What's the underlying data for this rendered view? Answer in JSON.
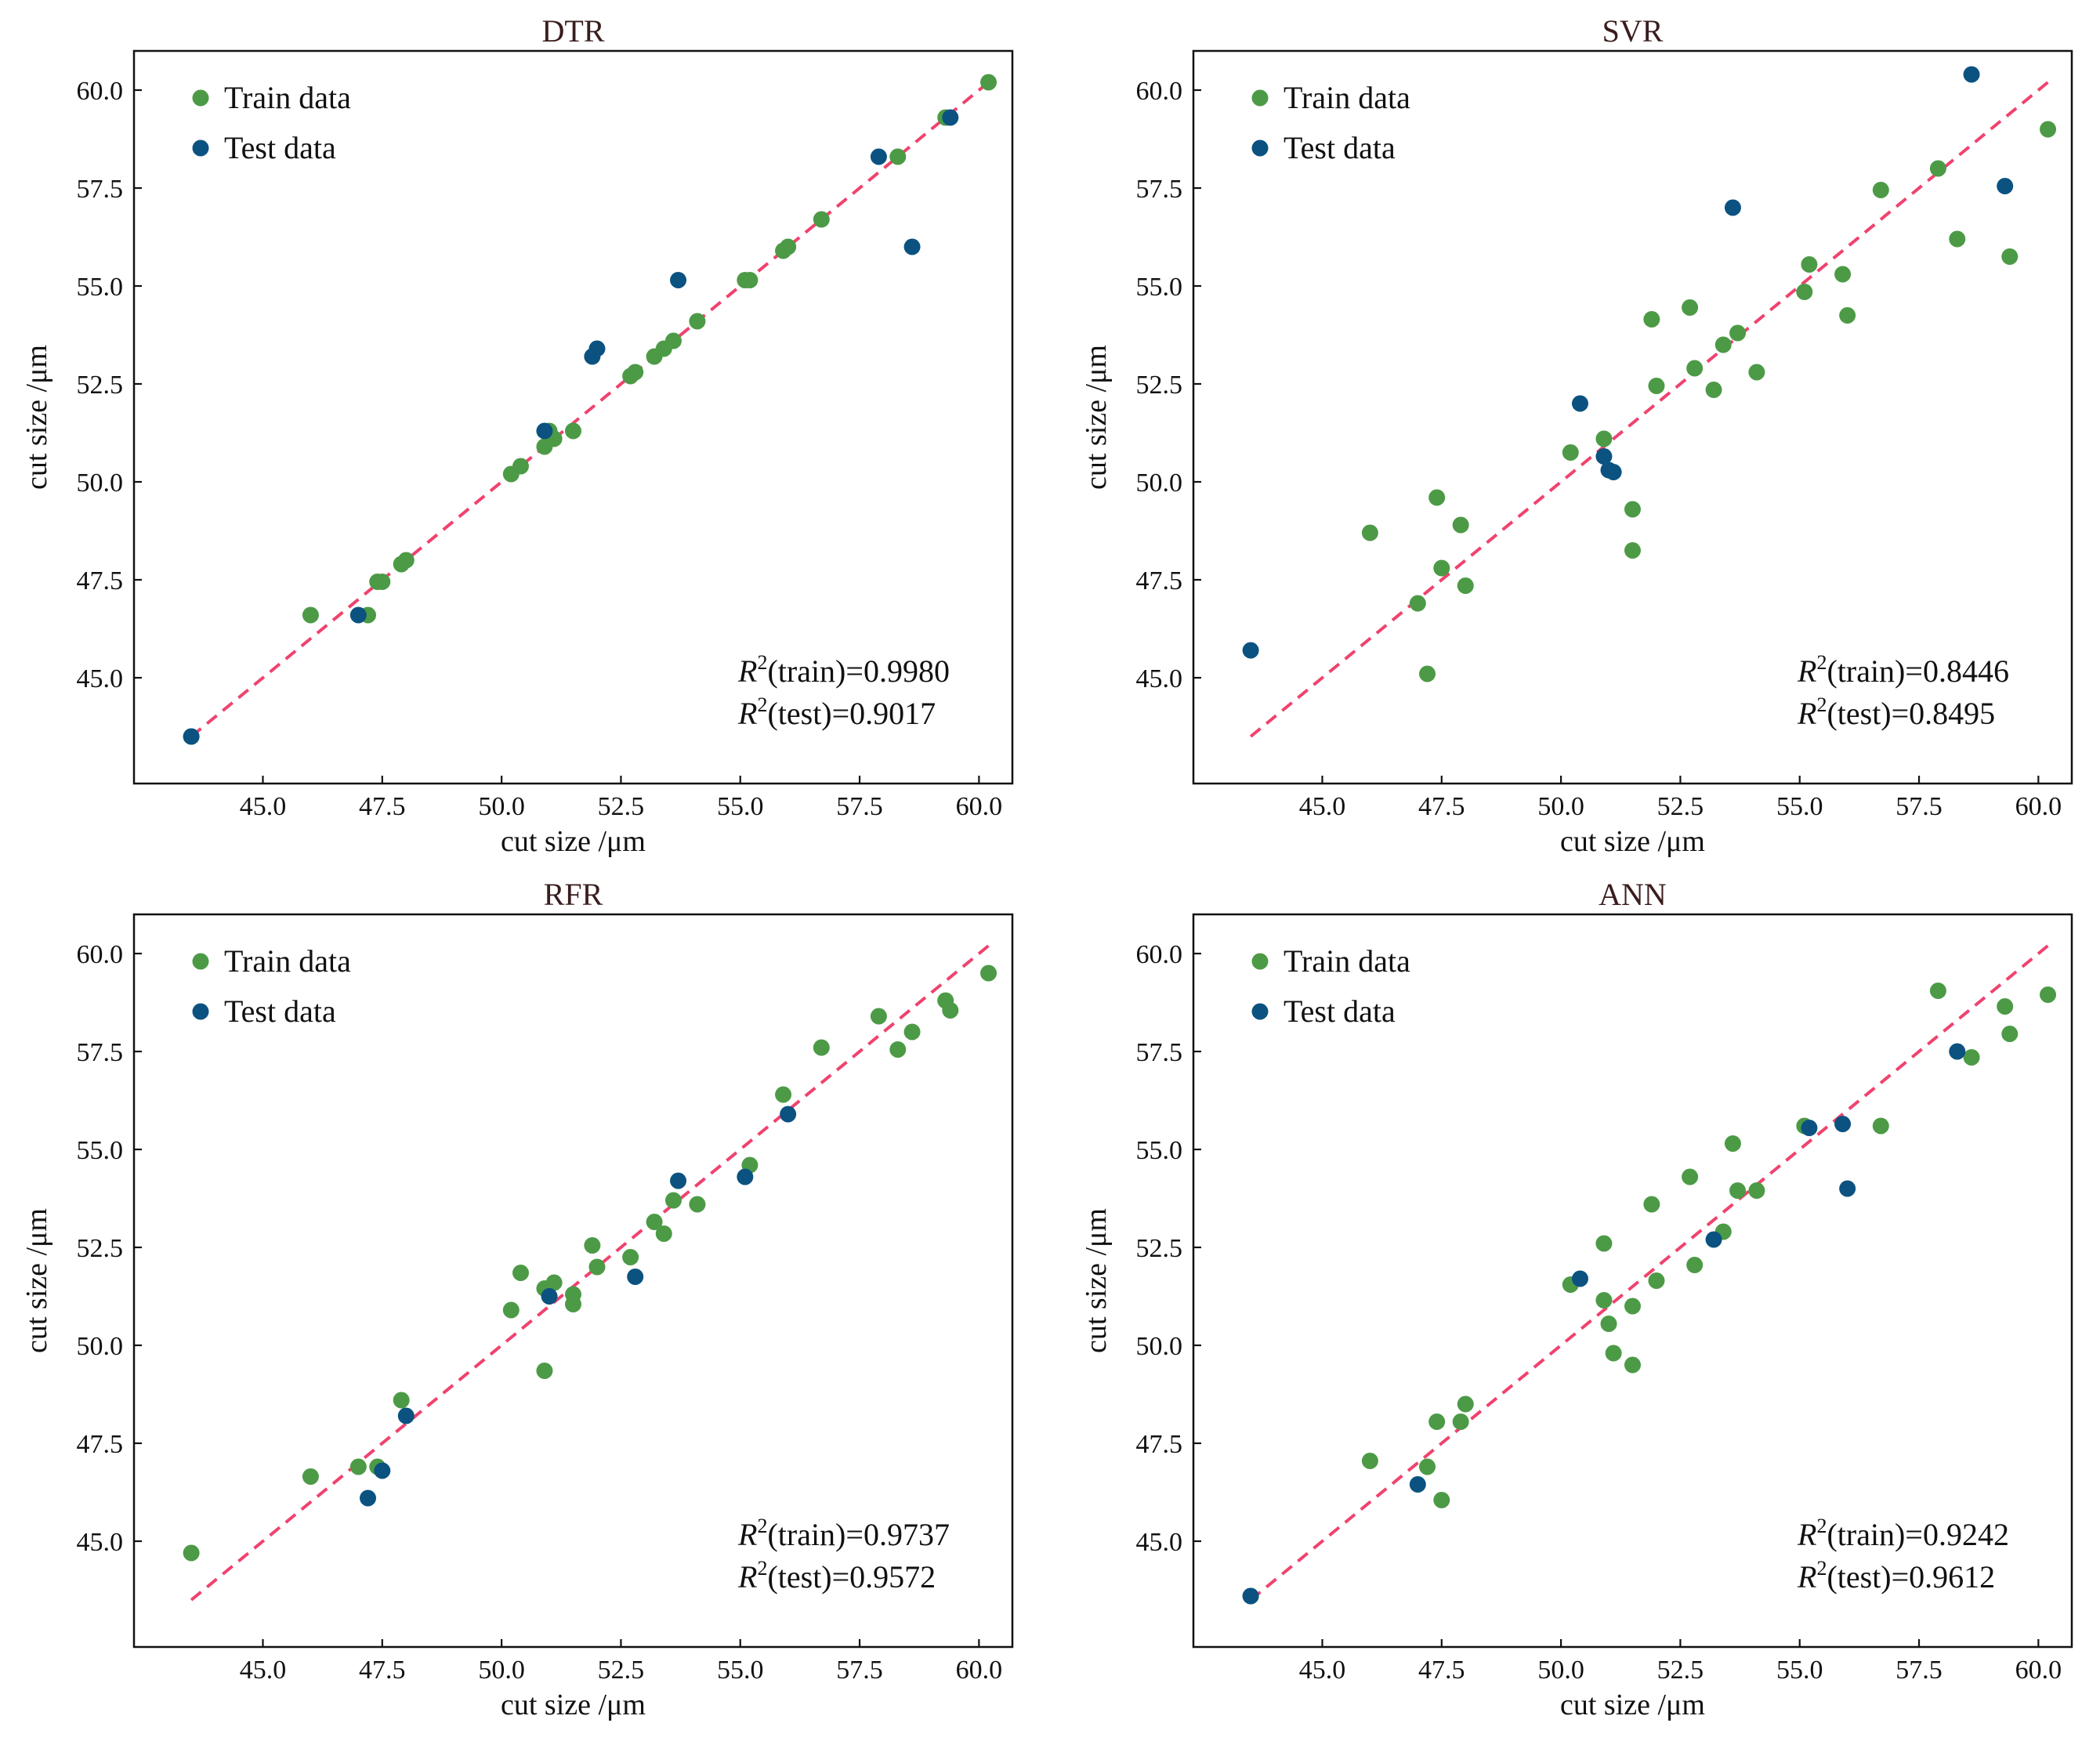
{
  "colors": {
    "train": "#4c9a46",
    "test": "#0b5281",
    "fit": "#f0426e",
    "title": "#3a1d1d"
  },
  "chart_data": [
    {
      "type": "scatter",
      "title": "DTR",
      "xlabel": "cut size /μm",
      "ylabel": "cut size /μm",
      "xlim": [
        42.3,
        60.7
      ],
      "ylim": [
        42.3,
        61.0
      ],
      "xticks": [
        "45.0",
        "47.5",
        "50.0",
        "52.5",
        "55.0",
        "57.5",
        "60.0"
      ],
      "yticks": [
        "45.0",
        "47.5",
        "50.0",
        "52.5",
        "55.0",
        "57.5",
        "60.0"
      ],
      "legend": [
        "Train data",
        "Test data"
      ],
      "legend_position": "top-left",
      "fit_line": [
        [
          43.5,
          43.5
        ],
        [
          60.2,
          60.2
        ]
      ],
      "metrics": {
        "r2_train_label": "(train)=0.9980",
        "r2_test_label": "(test)=0.9017"
      },
      "series": [
        {
          "name": "Train data",
          "points": [
            [
              43.5,
              43.5
            ],
            [
              46.0,
              46.6
            ],
            [
              47.2,
              46.6
            ],
            [
              47.4,
              47.45
            ],
            [
              47.5,
              47.45
            ],
            [
              47.9,
              47.9
            ],
            [
              48.0,
              48.0
            ],
            [
              50.2,
              50.2
            ],
            [
              50.4,
              50.4
            ],
            [
              50.9,
              50.9
            ],
            [
              51.1,
              51.1
            ],
            [
              51.0,
              51.3
            ],
            [
              51.5,
              51.3
            ],
            [
              52.7,
              52.7
            ],
            [
              52.8,
              52.8
            ],
            [
              53.2,
              53.2
            ],
            [
              53.4,
              53.4
            ],
            [
              53.6,
              53.6
            ],
            [
              54.1,
              54.1
            ],
            [
              55.1,
              55.15
            ],
            [
              55.2,
              55.15
            ],
            [
              55.9,
              55.9
            ],
            [
              56.0,
              56.0
            ],
            [
              56.7,
              56.7
            ],
            [
              58.3,
              58.3
            ],
            [
              59.3,
              59.3
            ],
            [
              60.2,
              60.2
            ]
          ]
        },
        {
          "name": "Test data",
          "points": [
            [
              43.5,
              43.5
            ],
            [
              47.0,
              46.6
            ],
            [
              50.9,
              51.3
            ],
            [
              51.9,
              53.2
            ],
            [
              52.0,
              53.4
            ],
            [
              53.7,
              55.15
            ],
            [
              57.9,
              58.3
            ],
            [
              58.6,
              56.0
            ],
            [
              59.4,
              59.3
            ]
          ]
        }
      ]
    },
    {
      "type": "scatter",
      "title": "SVR",
      "xlabel": "cut size /μm",
      "ylabel": "cut size /μm",
      "xlim": [
        42.3,
        60.7
      ],
      "ylim": [
        42.3,
        61.0
      ],
      "xticks": [
        "45.0",
        "47.5",
        "50.0",
        "52.5",
        "55.0",
        "57.5",
        "60.0"
      ],
      "yticks": [
        "45.0",
        "47.5",
        "50.0",
        "52.5",
        "55.0",
        "57.5",
        "60.0"
      ],
      "legend": [
        "Train data",
        "Test data"
      ],
      "legend_position": "top-left",
      "fit_line": [
        [
          43.5,
          43.5
        ],
        [
          60.2,
          60.2
        ]
      ],
      "metrics": {
        "r2_train_label": "(train)=0.8446",
        "r2_test_label": "(test)=0.8495"
      },
      "series": [
        {
          "name": "Train data",
          "points": [
            [
              46.0,
              48.7
            ],
            [
              47.0,
              46.9
            ],
            [
              47.2,
              45.1
            ],
            [
              47.4,
              49.6
            ],
            [
              47.5,
              47.8
            ],
            [
              47.9,
              48.9
            ],
            [
              48.0,
              47.35
            ],
            [
              50.2,
              50.75
            ],
            [
              50.9,
              51.1
            ],
            [
              51.5,
              49.3
            ],
            [
              51.5,
              48.25
            ],
            [
              51.9,
              54.15
            ],
            [
              52.0,
              52.45
            ],
            [
              52.7,
              54.45
            ],
            [
              52.8,
              52.9
            ],
            [
              53.2,
              52.35
            ],
            [
              53.4,
              53.5
            ],
            [
              53.7,
              53.8
            ],
            [
              54.1,
              52.8
            ],
            [
              55.1,
              54.85
            ],
            [
              55.2,
              55.55
            ],
            [
              55.9,
              55.3
            ],
            [
              56.0,
              54.25
            ],
            [
              56.7,
              57.45
            ],
            [
              57.9,
              58.0
            ],
            [
              58.3,
              56.2
            ],
            [
              59.4,
              55.75
            ],
            [
              60.2,
              59.0
            ]
          ]
        },
        {
          "name": "Test data",
          "points": [
            [
              43.5,
              45.7
            ],
            [
              50.4,
              52.0
            ],
            [
              50.9,
              50.65
            ],
            [
              51.0,
              50.3
            ],
            [
              51.1,
              50.25
            ],
            [
              53.6,
              57.0
            ],
            [
              58.6,
              60.4
            ],
            [
              59.3,
              57.55
            ]
          ]
        }
      ]
    },
    {
      "type": "scatter",
      "title": "RFR",
      "xlabel": "cut size /μm",
      "ylabel": "cut size /μm",
      "xlim": [
        42.3,
        60.7
      ],
      "ylim": [
        42.3,
        61.0
      ],
      "xticks": [
        "45.0",
        "47.5",
        "50.0",
        "52.5",
        "55.0",
        "57.5",
        "60.0"
      ],
      "yticks": [
        "45.0",
        "47.5",
        "50.0",
        "52.5",
        "55.0",
        "57.5",
        "60.0"
      ],
      "legend": [
        "Train data",
        "Test data"
      ],
      "legend_position": "top-left",
      "fit_line": [
        [
          43.5,
          43.5
        ],
        [
          60.2,
          60.2
        ]
      ],
      "metrics": {
        "r2_train_label": "(train)=0.9737",
        "r2_test_label": "(test)=0.9572"
      },
      "series": [
        {
          "name": "Train data",
          "points": [
            [
              43.5,
              44.7
            ],
            [
              46.0,
              46.65
            ],
            [
              47.0,
              46.9
            ],
            [
              47.4,
              46.9
            ],
            [
              47.9,
              48.6
            ],
            [
              50.2,
              50.9
            ],
            [
              50.4,
              51.85
            ],
            [
              50.9,
              51.45
            ],
            [
              50.9,
              49.35
            ],
            [
              51.1,
              51.6
            ],
            [
              51.5,
              51.3
            ],
            [
              51.5,
              51.05
            ],
            [
              51.9,
              52.55
            ],
            [
              52.0,
              52.0
            ],
            [
              52.7,
              52.25
            ],
            [
              53.2,
              53.15
            ],
            [
              53.4,
              52.85
            ],
            [
              53.6,
              53.7
            ],
            [
              54.1,
              53.6
            ],
            [
              55.2,
              54.6
            ],
            [
              55.9,
              56.4
            ],
            [
              56.7,
              57.6
            ],
            [
              57.9,
              58.4
            ],
            [
              58.3,
              57.55
            ],
            [
              58.6,
              58.0
            ],
            [
              59.3,
              58.8
            ],
            [
              59.4,
              58.55
            ],
            [
              60.2,
              59.5
            ]
          ]
        },
        {
          "name": "Test data",
          "points": [
            [
              47.2,
              46.1
            ],
            [
              47.5,
              46.8
            ],
            [
              48.0,
              48.2
            ],
            [
              51.0,
              51.25
            ],
            [
              52.8,
              51.75
            ],
            [
              53.7,
              54.2
            ],
            [
              55.1,
              54.3
            ],
            [
              56.0,
              55.9
            ]
          ]
        }
      ]
    },
    {
      "type": "scatter",
      "title": "ANN",
      "xlabel": "cut size /μm",
      "ylabel": "cut size /μm",
      "xlim": [
        42.3,
        60.7
      ],
      "ylim": [
        42.3,
        61.0
      ],
      "xticks": [
        "45.0",
        "47.5",
        "50.0",
        "52.5",
        "55.0",
        "57.5",
        "60.0"
      ],
      "yticks": [
        "45.0",
        "47.5",
        "50.0",
        "52.5",
        "55.0",
        "57.5",
        "60.0"
      ],
      "legend": [
        "Train data",
        "Test data"
      ],
      "legend_position": "top-left",
      "fit_line": [
        [
          43.5,
          43.5
        ],
        [
          60.2,
          60.2
        ]
      ],
      "metrics": {
        "r2_train_label": "(train)=0.9242",
        "r2_test_label": "(test)=0.9612"
      },
      "series": [
        {
          "name": "Train data",
          "points": [
            [
              43.5,
              43.6
            ],
            [
              46.0,
              47.05
            ],
            [
              47.2,
              46.9
            ],
            [
              47.4,
              48.05
            ],
            [
              47.5,
              46.05
            ],
            [
              47.9,
              48.05
            ],
            [
              48.0,
              48.5
            ],
            [
              50.2,
              51.55
            ],
            [
              50.9,
              52.6
            ],
            [
              50.9,
              51.15
            ],
            [
              51.0,
              50.55
            ],
            [
              51.1,
              49.8
            ],
            [
              51.5,
              51.0
            ],
            [
              51.5,
              49.5
            ],
            [
              51.9,
              53.6
            ],
            [
              52.0,
              51.65
            ],
            [
              52.7,
              54.3
            ],
            [
              52.8,
              52.05
            ],
            [
              53.4,
              52.9
            ],
            [
              53.6,
              55.15
            ],
            [
              53.7,
              53.95
            ],
            [
              54.1,
              53.95
            ],
            [
              55.1,
              55.6
            ],
            [
              56.7,
              55.6
            ],
            [
              57.9,
              59.05
            ],
            [
              58.6,
              57.35
            ],
            [
              59.3,
              58.65
            ],
            [
              59.4,
              57.95
            ],
            [
              60.2,
              58.95
            ]
          ]
        },
        {
          "name": "Test data",
          "points": [
            [
              43.5,
              43.6
            ],
            [
              47.0,
              46.45
            ],
            [
              50.4,
              51.7
            ],
            [
              53.2,
              52.7
            ],
            [
              55.2,
              55.55
            ],
            [
              55.9,
              55.65
            ],
            [
              56.0,
              54.0
            ],
            [
              58.3,
              57.5
            ]
          ]
        }
      ]
    }
  ]
}
